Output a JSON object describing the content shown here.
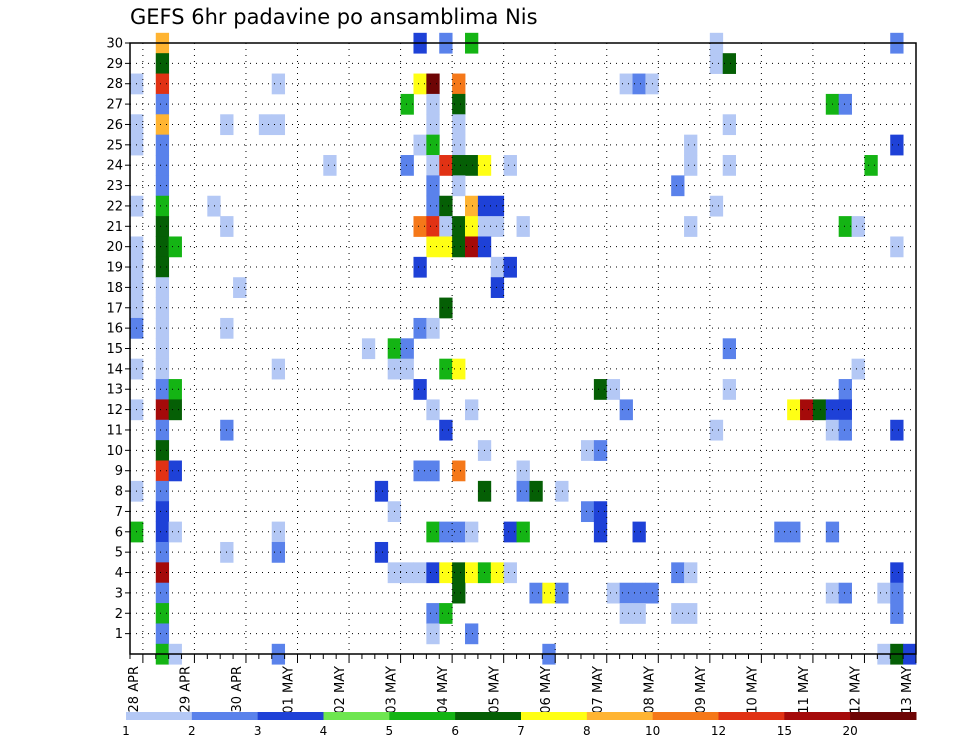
{
  "chart_data": {
    "type": "heatmap",
    "title": "GEFS 6hr padavine po ansamblima Nis",
    "xlabel": "",
    "ylabel": "",
    "x_tick_labels": [
      "28 APR",
      "29 APR",
      "30 APR",
      "01 MAY",
      "02 MAY",
      "03 MAY",
      "04 MAY",
      "05 MAY",
      "06 MAY",
      "07 MAY",
      "08 MAY",
      "09 MAY",
      "10 MAY",
      "11 MAY",
      "12 MAY",
      "13 MAY"
    ],
    "y_tick_labels": [
      "1",
      "2",
      "3",
      "4",
      "5",
      "6",
      "7",
      "8",
      "9",
      "10",
      "11",
      "12",
      "13",
      "14",
      "15",
      "16",
      "17",
      "18",
      "19",
      "20",
      "21",
      "22",
      "23",
      "24",
      "25",
      "26",
      "27",
      "28",
      "29",
      "30"
    ],
    "x_range_steps": [
      0,
      61
    ],
    "y_range": [
      0,
      30
    ],
    "grid": true,
    "grid_style": "dotted",
    "colorbar": {
      "levels": [
        "1",
        "2",
        "3",
        "4",
        "5",
        "6",
        "7",
        "8",
        "10",
        "12",
        "15",
        "20"
      ],
      "colors": [
        "#b4c8f5",
        "#5a82eb",
        "#1e41d7",
        "#6ee650",
        "#14b414",
        "#055f05",
        "#ffff14",
        "#ffb432",
        "#f57819",
        "#e13214",
        "#a50a0a",
        "#6e0505"
      ]
    },
    "cells": [
      [
        2,
        30,
        7
      ],
      [
        22,
        30,
        2
      ],
      [
        24,
        30,
        1
      ],
      [
        26,
        30,
        4
      ],
      [
        45,
        30,
        0
      ],
      [
        59,
        30,
        1
      ],
      [
        2,
        29,
        5
      ],
      [
        45,
        29,
        0
      ],
      [
        46,
        29,
        5
      ],
      [
        0,
        28,
        0
      ],
      [
        2,
        28,
        9
      ],
      [
        11,
        28,
        0
      ],
      [
        22,
        28,
        6
      ],
      [
        23,
        28,
        11
      ],
      [
        25,
        28,
        8
      ],
      [
        38,
        28,
        0
      ],
      [
        39,
        28,
        1
      ],
      [
        40,
        28,
        0
      ],
      [
        2,
        27,
        1
      ],
      [
        21,
        27,
        4
      ],
      [
        23,
        27,
        0
      ],
      [
        25,
        27,
        5
      ],
      [
        54,
        27,
        4
      ],
      [
        55,
        27,
        1
      ],
      [
        0,
        26,
        0
      ],
      [
        2,
        26,
        7
      ],
      [
        7,
        26,
        0
      ],
      [
        10,
        26,
        0
      ],
      [
        11,
        26,
        0
      ],
      [
        23,
        26,
        0
      ],
      [
        25,
        26,
        0
      ],
      [
        46,
        26,
        0
      ],
      [
        0,
        25,
        0
      ],
      [
        2,
        25,
        1
      ],
      [
        22,
        25,
        0
      ],
      [
        23,
        25,
        4
      ],
      [
        25,
        25,
        0
      ],
      [
        43,
        25,
        0
      ],
      [
        59,
        25,
        2
      ],
      [
        2,
        24,
        1
      ],
      [
        15,
        24,
        0
      ],
      [
        21,
        24,
        1
      ],
      [
        23,
        24,
        0
      ],
      [
        24,
        24,
        9
      ],
      [
        25,
        24,
        5
      ],
      [
        26,
        24,
        5
      ],
      [
        27,
        24,
        6
      ],
      [
        29,
        24,
        0
      ],
      [
        43,
        24,
        0
      ],
      [
        46,
        24,
        0
      ],
      [
        57,
        24,
        4
      ],
      [
        2,
        23,
        1
      ],
      [
        23,
        23,
        1
      ],
      [
        25,
        23,
        0
      ],
      [
        42,
        23,
        1
      ],
      [
        0,
        22,
        0
      ],
      [
        2,
        22,
        4
      ],
      [
        6,
        22,
        0
      ],
      [
        23,
        22,
        1
      ],
      [
        24,
        22,
        5
      ],
      [
        26,
        22,
        7
      ],
      [
        27,
        22,
        2
      ],
      [
        28,
        22,
        2
      ],
      [
        45,
        22,
        0
      ],
      [
        2,
        21,
        5
      ],
      [
        7,
        21,
        0
      ],
      [
        22,
        21,
        8
      ],
      [
        23,
        21,
        9
      ],
      [
        24,
        21,
        0
      ],
      [
        25,
        21,
        5
      ],
      [
        26,
        21,
        6
      ],
      [
        27,
        21,
        0
      ],
      [
        28,
        21,
        0
      ],
      [
        30,
        21,
        0
      ],
      [
        43,
        21,
        0
      ],
      [
        55,
        21,
        4
      ],
      [
        56,
        21,
        0
      ],
      [
        0,
        20,
        0
      ],
      [
        2,
        20,
        5
      ],
      [
        3,
        20,
        4
      ],
      [
        23,
        20,
        6
      ],
      [
        24,
        20,
        6
      ],
      [
        25,
        20,
        5
      ],
      [
        26,
        20,
        10
      ],
      [
        27,
        20,
        2
      ],
      [
        59,
        20,
        0
      ],
      [
        0,
        19,
        0
      ],
      [
        2,
        19,
        5
      ],
      [
        22,
        19,
        2
      ],
      [
        28,
        19,
        0
      ],
      [
        29,
        19,
        2
      ],
      [
        0,
        18,
        0
      ],
      [
        2,
        18,
        0
      ],
      [
        8,
        18,
        0
      ],
      [
        28,
        18,
        2
      ],
      [
        0,
        17,
        0
      ],
      [
        2,
        17,
        0
      ],
      [
        24,
        17,
        5
      ],
      [
        0,
        16,
        1
      ],
      [
        2,
        16,
        0
      ],
      [
        7,
        16,
        0
      ],
      [
        22,
        16,
        1
      ],
      [
        23,
        16,
        0
      ],
      [
        2,
        15,
        0
      ],
      [
        18,
        15,
        0
      ],
      [
        20,
        15,
        4
      ],
      [
        21,
        15,
        1
      ],
      [
        46,
        15,
        1
      ],
      [
        0,
        14,
        0
      ],
      [
        2,
        14,
        0
      ],
      [
        11,
        14,
        0
      ],
      [
        20,
        14,
        0
      ],
      [
        21,
        14,
        0
      ],
      [
        24,
        14,
        4
      ],
      [
        25,
        14,
        6
      ],
      [
        56,
        14,
        0
      ],
      [
        2,
        13,
        1
      ],
      [
        3,
        13,
        4
      ],
      [
        22,
        13,
        2
      ],
      [
        36,
        13,
        5
      ],
      [
        37,
        13,
        0
      ],
      [
        46,
        13,
        0
      ],
      [
        55,
        13,
        1
      ],
      [
        0,
        12,
        0
      ],
      [
        2,
        12,
        10
      ],
      [
        3,
        12,
        5
      ],
      [
        23,
        12,
        0
      ],
      [
        26,
        12,
        0
      ],
      [
        38,
        12,
        1
      ],
      [
        51,
        12,
        6
      ],
      [
        52,
        12,
        10
      ],
      [
        53,
        12,
        5
      ],
      [
        54,
        12,
        2
      ],
      [
        55,
        12,
        2
      ],
      [
        2,
        11,
        1
      ],
      [
        7,
        11,
        1
      ],
      [
        24,
        11,
        2
      ],
      [
        45,
        11,
        0
      ],
      [
        54,
        11,
        0
      ],
      [
        55,
        11,
        1
      ],
      [
        59,
        11,
        2
      ],
      [
        2,
        10,
        5
      ],
      [
        27,
        10,
        0
      ],
      [
        35,
        10,
        0
      ],
      [
        36,
        10,
        1
      ],
      [
        2,
        9,
        9
      ],
      [
        3,
        9,
        2
      ],
      [
        22,
        9,
        1
      ],
      [
        23,
        9,
        1
      ],
      [
        25,
        9,
        8
      ],
      [
        30,
        9,
        0
      ],
      [
        0,
        8,
        0
      ],
      [
        2,
        8,
        1
      ],
      [
        19,
        8,
        2
      ],
      [
        27,
        8,
        5
      ],
      [
        30,
        8,
        1
      ],
      [
        31,
        8,
        5
      ],
      [
        33,
        8,
        0
      ],
      [
        2,
        7,
        2
      ],
      [
        20,
        7,
        0
      ],
      [
        35,
        7,
        1
      ],
      [
        36,
        7,
        2
      ],
      [
        0,
        6,
        4
      ],
      [
        2,
        6,
        2
      ],
      [
        3,
        6,
        0
      ],
      [
        11,
        6,
        0
      ],
      [
        23,
        6,
        4
      ],
      [
        24,
        6,
        1
      ],
      [
        25,
        6,
        1
      ],
      [
        26,
        6,
        0
      ],
      [
        29,
        6,
        2
      ],
      [
        30,
        6,
        4
      ],
      [
        36,
        6,
        2
      ],
      [
        39,
        6,
        2
      ],
      [
        50,
        6,
        1
      ],
      [
        51,
        6,
        1
      ],
      [
        54,
        6,
        1
      ],
      [
        2,
        5,
        1
      ],
      [
        7,
        5,
        0
      ],
      [
        11,
        5,
        1
      ],
      [
        19,
        5,
        2
      ],
      [
        2,
        4,
        10
      ],
      [
        20,
        4,
        0
      ],
      [
        21,
        4,
        0
      ],
      [
        22,
        4,
        0
      ],
      [
        23,
        4,
        2
      ],
      [
        24,
        4,
        6
      ],
      [
        25,
        4,
        5
      ],
      [
        26,
        4,
        6
      ],
      [
        27,
        4,
        4
      ],
      [
        28,
        4,
        6
      ],
      [
        29,
        4,
        0
      ],
      [
        42,
        4,
        1
      ],
      [
        43,
        4,
        0
      ],
      [
        59,
        4,
        2
      ],
      [
        2,
        3,
        1
      ],
      [
        25,
        3,
        5
      ],
      [
        31,
        3,
        1
      ],
      [
        32,
        3,
        6
      ],
      [
        33,
        3,
        1
      ],
      [
        37,
        3,
        0
      ],
      [
        38,
        3,
        1
      ],
      [
        39,
        3,
        1
      ],
      [
        40,
        3,
        1
      ],
      [
        54,
        3,
        0
      ],
      [
        55,
        3,
        1
      ],
      [
        58,
        3,
        0
      ],
      [
        59,
        3,
        1
      ],
      [
        2,
        2,
        4
      ],
      [
        23,
        2,
        1
      ],
      [
        24,
        2,
        4
      ],
      [
        38,
        2,
        0
      ],
      [
        39,
        2,
        0
      ],
      [
        42,
        2,
        0
      ],
      [
        43,
        2,
        0
      ],
      [
        59,
        2,
        1
      ],
      [
        2,
        1,
        1
      ],
      [
        23,
        1,
        0
      ],
      [
        26,
        1,
        1
      ],
      [
        2,
        0,
        4
      ],
      [
        3,
        0,
        0
      ],
      [
        11,
        0,
        1
      ],
      [
        32,
        0,
        1
      ],
      [
        58,
        0,
        0
      ],
      [
        59,
        0,
        5
      ],
      [
        60,
        0,
        2
      ]
    ]
  }
}
